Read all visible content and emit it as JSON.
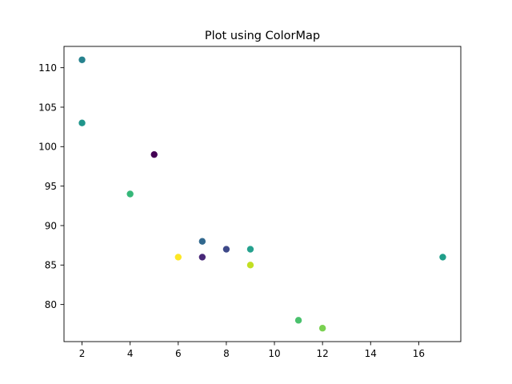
{
  "chart_data": {
    "type": "scatter",
    "title": "Plot using ColorMap",
    "xlabel": "",
    "ylabel": "",
    "xlim": [
      1.25,
      17.75
    ],
    "ylim": [
      75.3,
      112.7
    ],
    "xticks": [
      2,
      4,
      6,
      8,
      10,
      12,
      14,
      16
    ],
    "yticks": [
      80,
      85,
      90,
      95,
      100,
      105,
      110
    ],
    "grid": false,
    "legend": "none",
    "colormap": "viridis",
    "points": [
      {
        "x": 5,
        "y": 99,
        "color": "#440154"
      },
      {
        "x": 7,
        "y": 86,
        "color": "#482878"
      },
      {
        "x": 8,
        "y": 87,
        "color": "#3e4989"
      },
      {
        "x": 7,
        "y": 88,
        "color": "#31688e"
      },
      {
        "x": 2,
        "y": 111,
        "color": "#26828e"
      },
      {
        "x": 17,
        "y": 86,
        "color": "#1f9e89"
      },
      {
        "x": 2,
        "y": 103,
        "color": "#1f958b"
      },
      {
        "x": 9,
        "y": 87,
        "color": "#25a18e"
      },
      {
        "x": 4,
        "y": 94,
        "color": "#35b779"
      },
      {
        "x": 11,
        "y": 78,
        "color": "#4ac16d"
      },
      {
        "x": 12,
        "y": 77,
        "color": "#7ad151"
      },
      {
        "x": 9,
        "y": 85,
        "color": "#c2df23"
      },
      {
        "x": 6,
        "y": 86,
        "color": "#fde725"
      }
    ]
  }
}
